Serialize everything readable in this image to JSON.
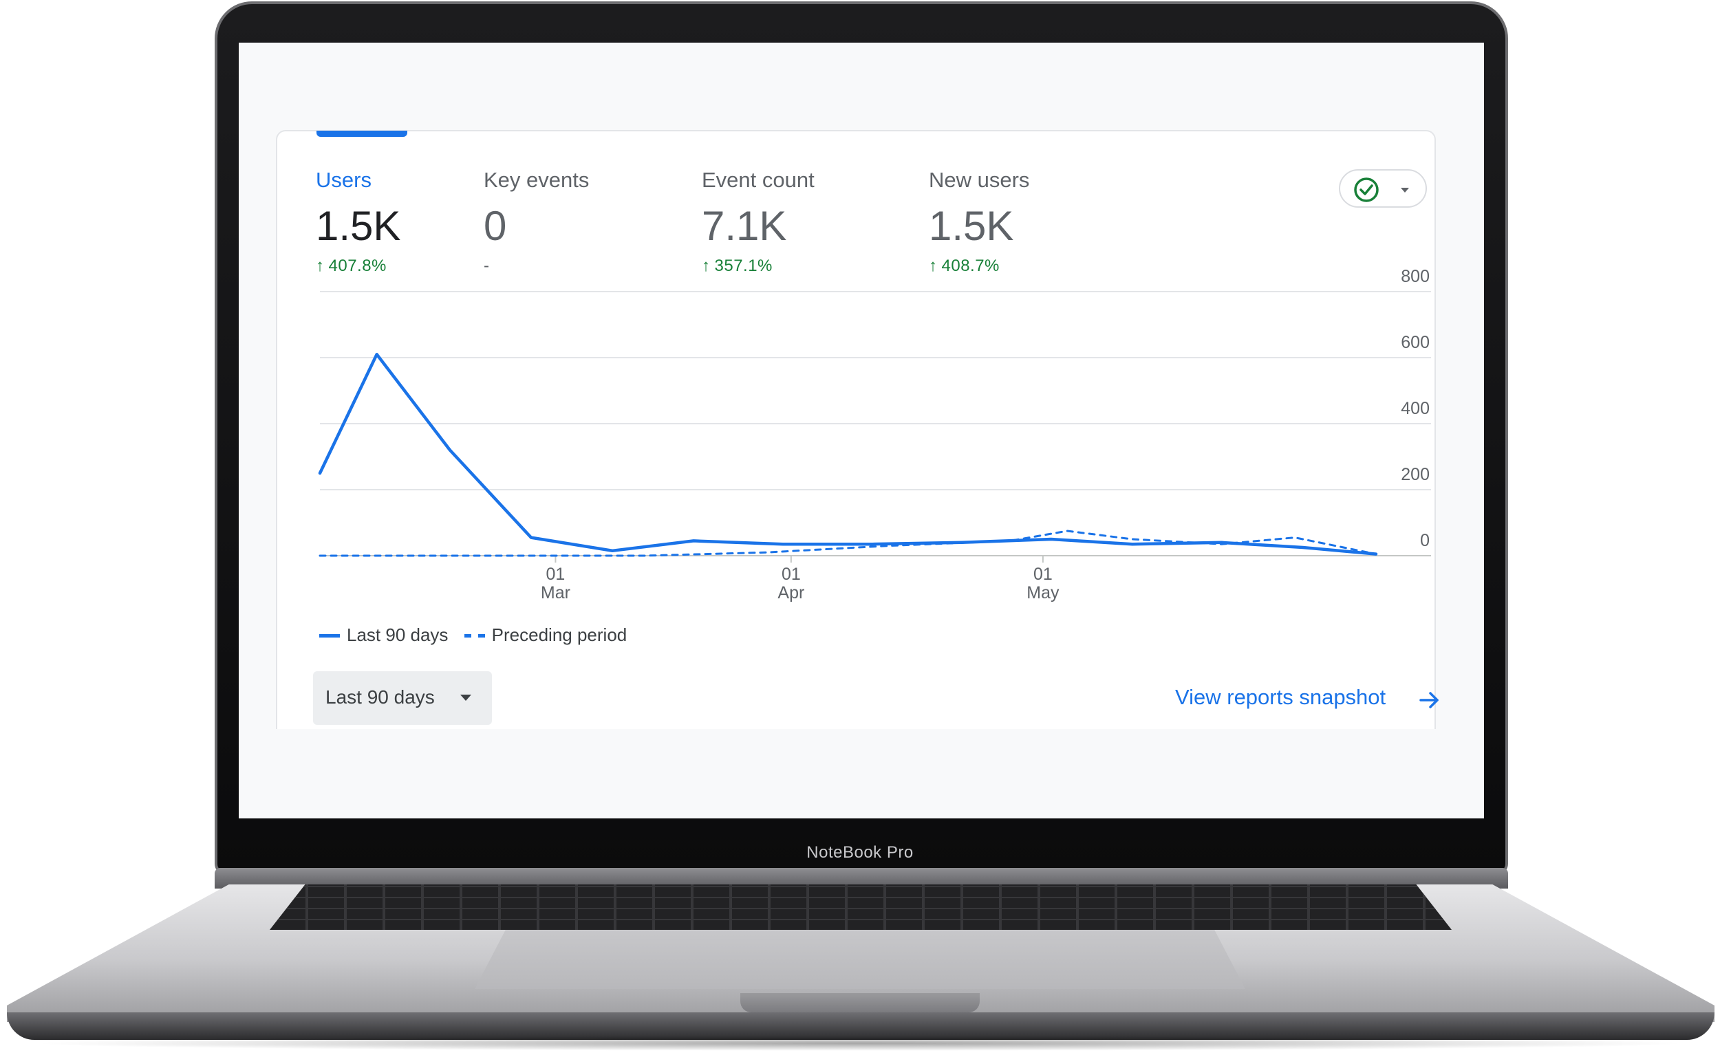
{
  "device": {
    "brand_label": "NoteBook Pro"
  },
  "metrics": [
    {
      "label": "Users",
      "value": "1.5K",
      "change": "407.8%",
      "trend": "up",
      "active": true
    },
    {
      "label": "Key events",
      "value": "0",
      "change": "-",
      "trend": "none",
      "active": false
    },
    {
      "label": "Event count",
      "value": "7.1K",
      "change": "357.1%",
      "trend": "up",
      "active": false
    },
    {
      "label": "New users",
      "value": "1.5K",
      "change": "408.7%",
      "trend": "up",
      "active": false
    }
  ],
  "compare_control": {
    "icon": "check-circle-icon",
    "caret_icon": "caret-down-icon"
  },
  "chart_data": {
    "type": "line",
    "x_ticks": [
      {
        "day": "01",
        "month": "Mar"
      },
      {
        "day": "01",
        "month": "Apr"
      },
      {
        "day": "01",
        "month": "May"
      }
    ],
    "y_ticks": [
      0,
      200,
      400,
      600,
      800
    ],
    "ylim": [
      0,
      800
    ],
    "grid": true,
    "legend_position": "bottom-left",
    "series": [
      {
        "name": "Last 90 days",
        "style": "solid",
        "color": "#1a73e8",
        "points": [
          [
            0,
            250
          ],
          [
            7,
            610
          ],
          [
            16,
            320
          ],
          [
            26,
            55
          ],
          [
            36,
            15
          ],
          [
            46,
            45
          ],
          [
            57,
            35
          ],
          [
            68,
            35
          ],
          [
            79,
            40
          ],
          [
            90,
            50
          ],
          [
            100,
            35
          ],
          [
            111,
            40
          ],
          [
            121,
            25
          ],
          [
            130,
            5
          ]
        ]
      },
      {
        "name": "Preceding period",
        "style": "dashed",
        "color": "#1a73e8",
        "points": [
          [
            0,
            0
          ],
          [
            40,
            0
          ],
          [
            55,
            10
          ],
          [
            70,
            30
          ],
          [
            85,
            45
          ],
          [
            92,
            75
          ],
          [
            100,
            50
          ],
          [
            111,
            35
          ],
          [
            120,
            55
          ],
          [
            130,
            5
          ]
        ]
      }
    ]
  },
  "legend": {
    "series1": "Last 90 days",
    "series2": "Preceding period"
  },
  "date_range": {
    "label": "Last 90 days"
  },
  "footer_link": {
    "label": "View reports snapshot"
  }
}
